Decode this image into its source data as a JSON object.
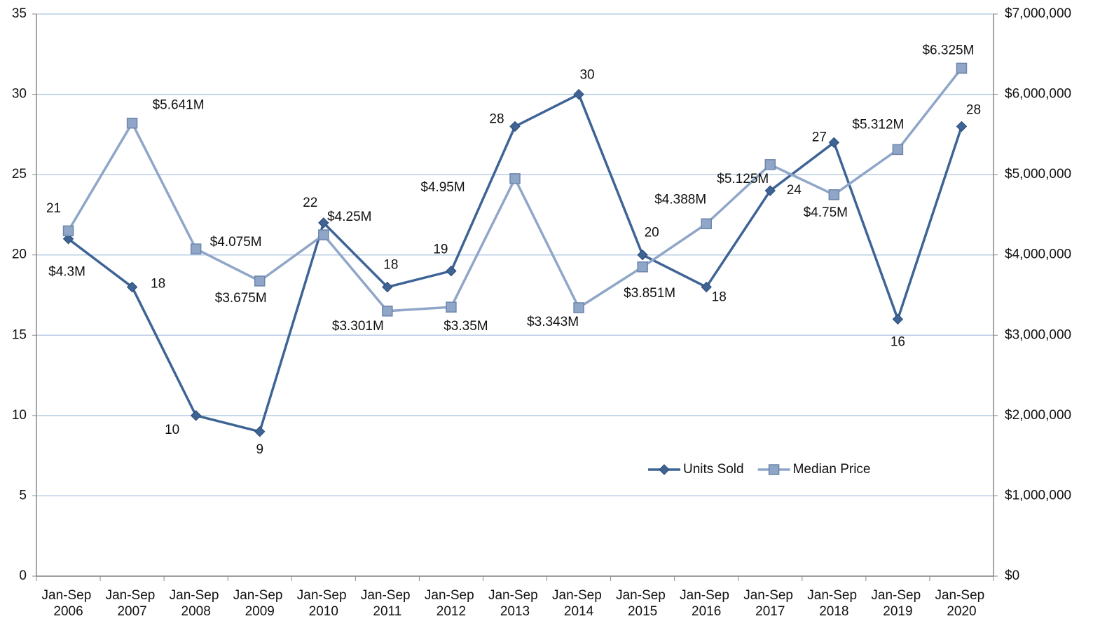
{
  "chart_data": {
    "type": "line",
    "categories": [
      "Jan-Sep 2006",
      "Jan-Sep 2007",
      "Jan-Sep 2008",
      "Jan-Sep 2009",
      "Jan-Sep 2010",
      "Jan-Sep 2011",
      "Jan-Sep 2012",
      "Jan-Sep 2013",
      "Jan-Sep 2014",
      "Jan-Sep 2015",
      "Jan-Sep 2016",
      "Jan-Sep 2017",
      "Jan-Sep 2018",
      "Jan-Sep 2019",
      "Jan-Sep 2020"
    ],
    "series": [
      {
        "name": "Units Sold",
        "color": "#3e6496",
        "marker": "diamond",
        "values": [
          21,
          18,
          10,
          9,
          22,
          18,
          19,
          28,
          30,
          20,
          18,
          24,
          27,
          16,
          28
        ]
      },
      {
        "name": "Median Price",
        "color": "#8fa6c8",
        "marker": "square",
        "axis": "y2",
        "values": [
          4300000,
          5641000,
          4075000,
          3675000,
          4250000,
          3301000,
          3350000,
          4950000,
          3343000,
          3851000,
          4388000,
          5125000,
          4750000,
          5312000,
          6325000
        ],
        "value_labels": [
          "$4.3M",
          "$5.641M",
          "$4.075M",
          "$3.675M",
          "$4.25M",
          "$3.301M",
          "$3.35M",
          "$4.95M",
          "$3.343M",
          "$3.851M",
          "$4.388M",
          "$5.125M",
          "$4.75M",
          "$5.312M",
          "$6.325M"
        ]
      }
    ],
    "ylim": [
      0,
      35
    ],
    "yticks": [
      0,
      5,
      10,
      15,
      20,
      25,
      30,
      35
    ],
    "y2lim": [
      0,
      7000000
    ],
    "y2ticks": [
      {
        "value": 0,
        "label": "$0"
      },
      {
        "value": 1000000,
        "label": "$1,000,000"
      },
      {
        "value": 2000000,
        "label": "$2,000,000"
      },
      {
        "value": 3000000,
        "label": "$3,000,000"
      },
      {
        "value": 4000000,
        "label": "$4,000,000"
      },
      {
        "value": 5000000,
        "label": "$5,000,000"
      },
      {
        "value": 6000000,
        "label": "$6,000,000"
      },
      {
        "value": 7000000,
        "label": "$7,000,000"
      }
    ],
    "grid": true,
    "legend": "lower right"
  }
}
